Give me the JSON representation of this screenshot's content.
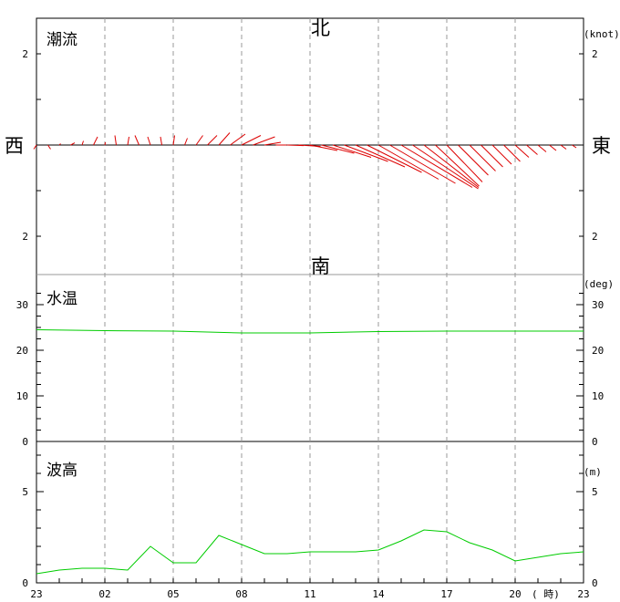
{
  "chart_data": [
    {
      "type": "vector",
      "panel_label": "潮流",
      "unit": "(knot)",
      "directions": {
        "north": "北",
        "south": "南",
        "west": "西",
        "east": "東"
      },
      "ylim": [
        -2.8,
        2.0
      ],
      "y_tick_labels_left": [
        "2",
        "2"
      ],
      "y_tick_labels_right": [
        "2",
        "2"
      ],
      "x_hours": [
        0,
        1,
        2,
        3,
        4,
        5,
        6,
        7,
        8,
        9,
        10,
        11,
        12,
        13,
        14,
        15,
        16,
        17,
        18,
        19,
        20,
        21,
        22,
        23,
        24
      ],
      "vector_interval_hours": 0.5,
      "vectors_east_north": [
        [
          -0.1,
          -0.15
        ],
        [
          0.1,
          -0.15
        ],
        [
          0.05,
          0.05
        ],
        [
          0.15,
          0.08
        ],
        [
          0.05,
          0.15
        ],
        [
          0.15,
          0.3
        ],
        [
          0.02,
          0.1
        ],
        [
          -0.05,
          0.35
        ],
        [
          0.05,
          0.3
        ],
        [
          -0.15,
          0.35
        ],
        [
          -0.1,
          0.3
        ],
        [
          -0.05,
          0.3
        ],
        [
          0.05,
          0.35
        ],
        [
          0.1,
          0.25
        ],
        [
          0.25,
          0.35
        ],
        [
          0.35,
          0.35
        ],
        [
          0.4,
          0.45
        ],
        [
          0.55,
          0.4
        ],
        [
          0.7,
          0.35
        ],
        [
          0.8,
          0.3
        ],
        [
          0.6,
          0.1
        ],
        [
          0.4,
          0.0
        ],
        [
          0.6,
          -0.02
        ],
        [
          0.8,
          -0.05
        ],
        [
          1.0,
          -0.2
        ],
        [
          1.2,
          -0.3
        ],
        [
          1.4,
          -0.45
        ],
        [
          1.6,
          -0.6
        ],
        [
          1.8,
          -0.8
        ],
        [
          2.0,
          -1.0
        ],
        [
          2.2,
          -1.25
        ],
        [
          2.4,
          -1.4
        ],
        [
          2.6,
          -1.55
        ],
        [
          2.4,
          -1.6
        ],
        [
          2.0,
          -1.55
        ],
        [
          1.6,
          -1.5
        ],
        [
          1.3,
          -1.35
        ],
        [
          1.1,
          -1.1
        ],
        [
          0.95,
          -0.95
        ],
        [
          0.8,
          -0.8
        ],
        [
          0.7,
          -0.7
        ],
        [
          0.6,
          -0.6
        ],
        [
          0.5,
          -0.45
        ],
        [
          0.4,
          -0.35
        ],
        [
          0.3,
          -0.25
        ],
        [
          0.25,
          -0.2
        ],
        [
          0.2,
          -0.15
        ],
        [
          0.15,
          -0.1
        ]
      ]
    },
    {
      "type": "line",
      "panel_label": "水温",
      "unit": "(deg)",
      "ylim": [
        0,
        30
      ],
      "y_ticks": [
        0,
        10,
        20,
        30
      ],
      "color": "#00cc00",
      "x": [
        0,
        3,
        6,
        9,
        12,
        15,
        18,
        21,
        24
      ],
      "values": [
        24.5,
        24.3,
        24.2,
        23.8,
        23.8,
        24.1,
        24.2,
        24.2,
        24.2
      ]
    },
    {
      "type": "line",
      "panel_label": "波高",
      "unit": "(m)",
      "ylim": [
        0,
        5
      ],
      "y_ticks": [
        0,
        5
      ],
      "color": "#00cc00",
      "x": [
        0,
        1,
        2,
        3,
        4,
        5,
        6,
        7,
        8,
        9,
        10,
        11,
        12,
        13,
        14,
        15,
        16,
        17,
        18,
        19,
        20,
        21,
        22,
        23,
        24
      ],
      "values": [
        0.5,
        0.7,
        0.8,
        0.8,
        0.7,
        2.0,
        1.1,
        1.1,
        2.6,
        2.1,
        1.6,
        1.6,
        1.7,
        1.7,
        1.7,
        1.8,
        2.3,
        2.9,
        2.8,
        2.2,
        1.8,
        1.2,
        1.4,
        1.6,
        1.7
      ]
    }
  ],
  "x_axis": {
    "tick_labels": [
      "23",
      "02",
      "05",
      "08",
      "11",
      "14",
      "17",
      "20",
      "23"
    ],
    "unit_label": "( 時)"
  }
}
